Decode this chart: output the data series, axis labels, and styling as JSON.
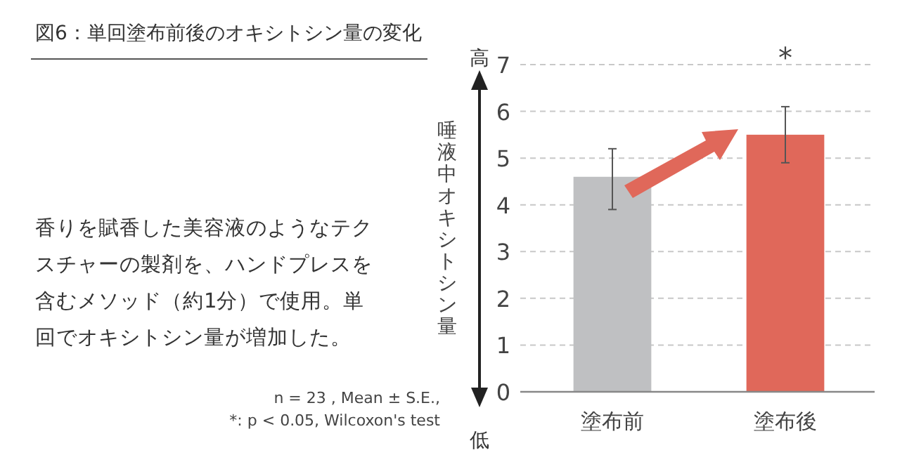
{
  "chart_data": {
    "type": "bar",
    "title": "図6：単回塗布前後のオキシトシン量の変化",
    "ylabel": "唾液中オキシトシン量",
    "categories": [
      "塗布前",
      "塗布後"
    ],
    "values": [
      4.6,
      5.5
    ],
    "errors": [
      [
        3.9,
        5.2
      ],
      [
        4.9,
        6.1
      ]
    ],
    "colors": [
      "#bfc0c2",
      "#e0685a"
    ],
    "ylim": [
      0,
      7
    ],
    "yticks": [
      0,
      1,
      2,
      3,
      4,
      5,
      6,
      7
    ],
    "grid": "y",
    "annotations": [
      "香りを賦香した美容液のようなテクスチャーの製剤を、ハンドプレスを含むメソッド（約1分）で使用。単回でオキシトシン量が増加した。",
      "n = 23 , Mean ± S.E.,\n*: p < 0.05, Wilcoxon's test",
      "高",
      "低",
      "*"
    ]
  }
}
